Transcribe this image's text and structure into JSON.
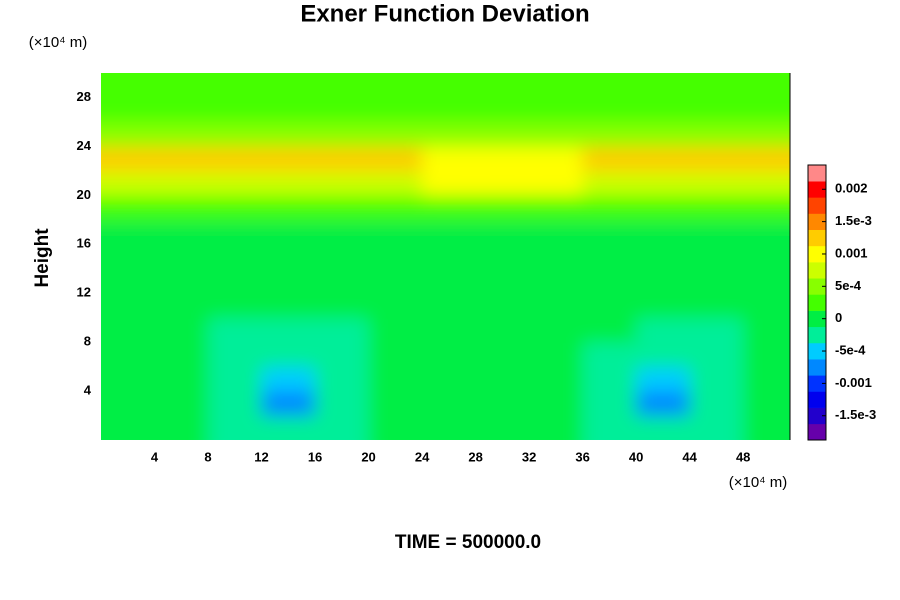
{
  "chart_data": {
    "type": "contour",
    "title": "Exner Function Deviation",
    "ylabel": "Height",
    "x_unit": "(×10⁴ m)",
    "y_unit": "(×10⁴ m)",
    "footer": "TIME = 500000.0",
    "xlim": [
      0,
      51.5
    ],
    "ylim": [
      0,
      30
    ],
    "xticks": [
      4,
      8,
      12,
      16,
      20,
      24,
      28,
      32,
      36,
      40,
      44,
      48
    ],
    "yticks": [
      4,
      8,
      12,
      16,
      20,
      24,
      28
    ],
    "x_edges": [
      0,
      4,
      8,
      12,
      16,
      20,
      24,
      28,
      32,
      36,
      40,
      44,
      48,
      51.5
    ],
    "y_edges": [
      0,
      2,
      4,
      6,
      8,
      10,
      12,
      14,
      16,
      18,
      20,
      22,
      24,
      26,
      28,
      30
    ],
    "z": [
      [
        -0.0001,
        -0.0001,
        -0.00015,
        -0.0003,
        -0.00015,
        0,
        0,
        -5e-05,
        -0.0001,
        -0.00015,
        -0.0003,
        -0.00015,
        -0.0001
      ],
      [
        -0.0001,
        -0.00012,
        -0.00025,
        -0.0007,
        -0.0002,
        -0.0001,
        -5e-05,
        -0.0001,
        -0.0001,
        -0.0002,
        -0.0007,
        -0.0002,
        -0.0001
      ],
      [
        -0.0001,
        -0.00012,
        -0.00025,
        -0.0006,
        -0.0002,
        -0.0001,
        -0.0001,
        -0.0001,
        -0.0001,
        -0.0002,
        -0.0006,
        -0.0002,
        -0.0001
      ],
      [
        -8e-05,
        -0.0001,
        -0.0002,
        -0.0003,
        -0.00015,
        -0.0001,
        -0.0001,
        -8e-05,
        -0.0001,
        -0.00015,
        -0.0003,
        -0.00015,
        -0.0001
      ],
      [
        -5e-05,
        -0.0001,
        -0.00015,
        -0.0002,
        -0.00015,
        -0.0001,
        -8e-05,
        -5e-05,
        -0.0001,
        -0.00012,
        -0.0002,
        -0.00015,
        -0.0001
      ],
      [
        0,
        -3e-05,
        -8e-05,
        -0.0001,
        -8e-05,
        -5e-05,
        -3e-05,
        -3e-05,
        -5e-05,
        -6e-05,
        -0.0001,
        -8e-05,
        -5e-05
      ],
      [
        2e-05,
        2e-05,
        2e-05,
        2e-05,
        2e-05,
        2e-05,
        2e-05,
        2e-05,
        2e-05,
        2e-05,
        2e-05,
        2e-05,
        2e-05
      ],
      [
        5e-05,
        5e-05,
        5e-05,
        5e-05,
        5e-05,
        5e-05,
        5e-05,
        5e-05,
        5e-05,
        5e-05,
        5e-05,
        5e-05,
        5e-05
      ],
      [
        0.0001,
        0.0001,
        0.0001,
        0.0001,
        0.0001,
        0.0001,
        0.0001,
        0.0001,
        0.0001,
        0.0001,
        0.0001,
        0.0001,
        0.0001
      ],
      [
        0.00018,
        0.00018,
        0.00018,
        0.00018,
        0.00018,
        0.00018,
        0.00018,
        0.00018,
        0.00018,
        0.00018,
        0.00018,
        0.00018,
        0.00018
      ],
      [
        0.0008,
        0.0008,
        0.0008,
        0.0008,
        0.0008,
        0.0008,
        0.0009,
        0.0009,
        0.0009,
        0.0008,
        0.0008,
        0.0008,
        0.0008
      ],
      [
        0.0013,
        0.0013,
        0.0013,
        0.0013,
        0.0013,
        0.0012,
        0.0011,
        0.0011,
        0.0011,
        0.0012,
        0.0013,
        0.0013,
        0.0013
      ],
      [
        0.0005,
        0.0005,
        0.0005,
        0.0005,
        0.0005,
        0.0005,
        0.0005,
        0.0005,
        0.0005,
        0.0005,
        0.0005,
        0.0005,
        0.0005
      ],
      [
        0.0003,
        0.0003,
        0.0003,
        0.0003,
        0.0003,
        0.0003,
        0.0003,
        0.0003,
        0.0003,
        0.0003,
        0.0003,
        0.0003,
        0.0003
      ],
      [
        0.00025,
        0.00025,
        0.00025,
        0.00025,
        0.00025,
        0.00025,
        0.00025,
        0.00025,
        0.00025,
        0.00025,
        0.00025,
        0.00025,
        0.00025
      ]
    ],
    "colorbar": {
      "levels": [
        -0.001875,
        -0.001625,
        -0.001375,
        -0.001125,
        -0.000875,
        -0.000625,
        -0.000375,
        -0.000125,
        0.000125,
        0.000375,
        0.000625,
        0.000875,
        0.001125,
        0.001375,
        0.001625,
        0.001875,
        0.002125,
        0.002375
      ],
      "colors": [
        "#6600aa",
        "#2200cc",
        "#0000ee",
        "#0033ff",
        "#0088ff",
        "#00ccff",
        "#00ee99",
        "#00ee44",
        "#44ff00",
        "#88ff00",
        "#ccff00",
        "#ffff00",
        "#ffcc00",
        "#ff8800",
        "#ff4400",
        "#ff0000",
        "#ff8888"
      ],
      "ticks": [
        {
          "value": -0.0015,
          "label": "-1.5e-3"
        },
        -0.001,
        {
          "value": -0.0005,
          "label": "-5e-4"
        },
        0,
        {
          "value": 0.0005,
          "label": "5e-4"
        },
        0.001,
        {
          "value": 0.0015,
          "label": "1.5e-3"
        },
        0.002
      ]
    }
  }
}
